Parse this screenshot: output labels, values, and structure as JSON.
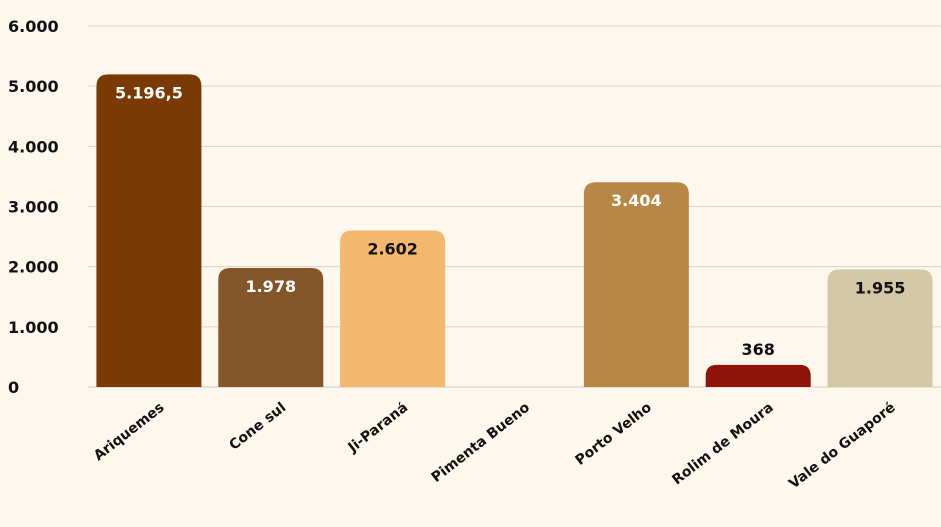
{
  "chart_data": {
    "type": "bar",
    "categories": [
      "Ariquemes",
      "Cone sul",
      "Ji-Paraná",
      "Pimenta Bueno",
      "Porto Velho",
      "Rolim de Moura",
      "Vale do Guaporé"
    ],
    "values": [
      5196.5,
      1978,
      2602,
      0,
      3404,
      368,
      1955
    ],
    "value_labels": [
      "5.196,5",
      "1.978",
      "2.602",
      "",
      "3.404",
      "368",
      "1.955"
    ],
    "bar_colors": [
      "#7a3a06",
      "#85552a",
      "#f2b86e",
      "#f2b86e",
      "#b98745",
      "#8e1409",
      "#d5c6a6"
    ],
    "label_colors": [
      "#ffffff",
      "#ffffff",
      "#111111",
      "#111111",
      "#ffffff",
      "#111111",
      "#111111"
    ],
    "label_inside": [
      true,
      true,
      true,
      false,
      true,
      false,
      true
    ],
    "ylim": [
      0,
      6000
    ],
    "yticks": [
      0,
      1000,
      2000,
      3000,
      4000,
      5000,
      6000
    ],
    "ytick_labels": [
      "0",
      "1.000",
      "2.000",
      "3.000",
      "4.000",
      "5.000",
      "6.000"
    ],
    "grid": true,
    "title": "",
    "xlabel": "",
    "ylabel": ""
  }
}
